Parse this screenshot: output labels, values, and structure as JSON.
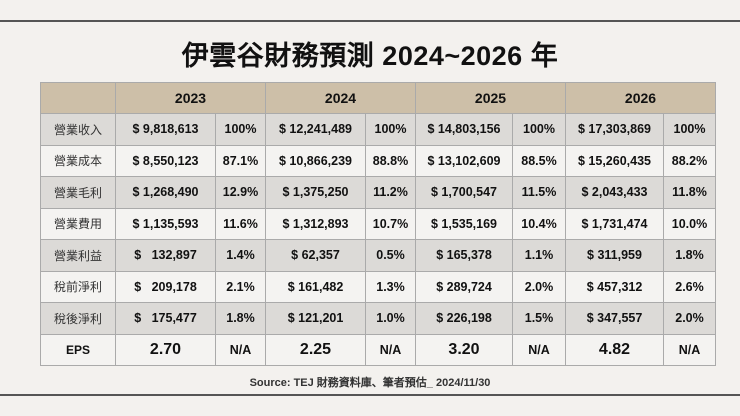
{
  "title": "伊雲谷財務預測 2024~2026 年",
  "source": "Source: TEJ 財務資料庫、筆者預估_ 2024/11/30",
  "years": [
    "2023",
    "2024",
    "2025",
    "2026"
  ],
  "rows": [
    {
      "label": "營業收入",
      "cells": [
        "$ 9,818,613",
        "100%",
        "$ 12,241,489",
        "100%",
        "$ 14,803,156",
        "100%",
        "$ 17,303,869",
        "100%"
      ]
    },
    {
      "label": "營業成本",
      "cells": [
        "$ 8,550,123",
        "87.1%",
        "$ 10,866,239",
        "88.8%",
        "$ 13,102,609",
        "88.5%",
        "$ 15,260,435",
        "88.2%"
      ]
    },
    {
      "label": "營業毛利",
      "cells": [
        "$ 1,268,490",
        "12.9%",
        "$ 1,375,250",
        "11.2%",
        "$ 1,700,547",
        "11.5%",
        "$ 2,043,433",
        "11.8%"
      ]
    },
    {
      "label": "營業費用",
      "cells": [
        "$ 1,135,593",
        "11.6%",
        "$ 1,312,893",
        "10.7%",
        "$ 1,535,169",
        "10.4%",
        "$ 1,731,474",
        "10.0%"
      ]
    },
    {
      "label": "營業利益",
      "cells": [
        "$   132,897",
        "1.4%",
        "$ 62,357",
        "0.5%",
        "$ 165,378",
        "1.1%",
        "$ 311,959",
        "1.8%"
      ]
    },
    {
      "label": "稅前淨利",
      "cells": [
        "$   209,178",
        "2.1%",
        "$ 161,482",
        "1.3%",
        "$ 289,724",
        "2.0%",
        "$ 457,312",
        "2.6%"
      ]
    },
    {
      "label": "稅後淨利",
      "cells": [
        "$   175,477",
        "1.8%",
        "$ 121,201",
        "1.0%",
        "$ 226,198",
        "1.5%",
        "$ 347,557",
        "2.0%"
      ]
    },
    {
      "label": "EPS",
      "cells": [
        "2.70",
        "N/A",
        "2.25",
        "N/A",
        "3.20",
        "N/A",
        "4.82",
        "N/A"
      ]
    }
  ]
}
